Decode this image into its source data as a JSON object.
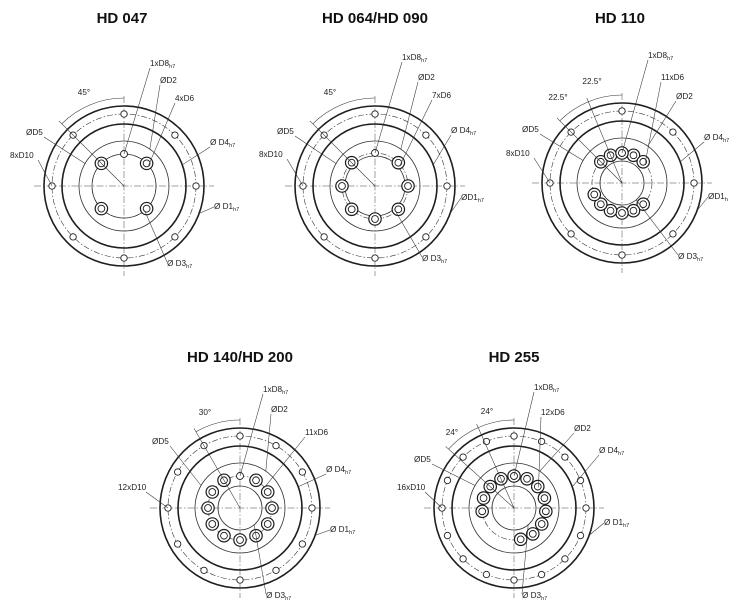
{
  "drawings": [
    {
      "id": "hd-047",
      "title": "HD 047",
      "labels": {
        "pin_hole": "1xD8",
        "pin_hole_tol": "h7",
        "d2": "ØD2",
        "inner_holes": "4xD6",
        "d4": "Ø D4",
        "d4_tol": "h7",
        "d5": "ØD5",
        "outer_holes": "8xD10",
        "d1": "Ø D1",
        "d1_tol": "h7",
        "d3": "Ø D3",
        "d3_tol": "h7"
      },
      "angles": [
        "45°"
      ]
    },
    {
      "id": "hd-064-090",
      "title": "HD 064/HD 090",
      "labels": {
        "pin_hole": "1xD8",
        "pin_hole_tol": "h7",
        "d2": "ØD2",
        "inner_holes": "7xD6",
        "d4": "Ø D4",
        "d4_tol": "h7",
        "d5": "ØD5",
        "outer_holes": "8xD10",
        "d1": "ØD1",
        "d1_tol": "h7",
        "d3": "Ø D3",
        "d3_tol": "h7"
      },
      "angles": [
        "45°"
      ]
    },
    {
      "id": "hd-110",
      "title": "HD 110",
      "labels": {
        "pin_hole": "1xD8",
        "pin_hole_tol": "h7",
        "d2": "ØD2",
        "inner_holes": "11xD6",
        "d4": "Ø D4",
        "d4_tol": "h7",
        "d5": "ØD5",
        "outer_holes": "8xD10",
        "d1": "ØD1",
        "d1_tol": "h",
        "d3": "Ø D3",
        "d3_tol": "h7"
      },
      "angles": [
        "22.5°",
        "22.5°"
      ]
    },
    {
      "id": "hd-140-200",
      "title": "HD 140/HD 200",
      "labels": {
        "pin_hole": "1xD8",
        "pin_hole_tol": "h7",
        "d2": "ØD2",
        "inner_holes": "11xD6",
        "d4": "Ø D4",
        "d4_tol": "h7",
        "d5": "ØD5",
        "outer_holes": "12xD10",
        "d1": "Ø D1",
        "d1_tol": "h7",
        "d3": "Ø D3",
        "d3_tol": "h7"
      },
      "angles": [
        "30°"
      ]
    },
    {
      "id": "hd-255",
      "title": "HD 255",
      "labels": {
        "pin_hole": "1xD8",
        "pin_hole_tol": "h7",
        "d2": "ØD2",
        "inner_holes": "12xD6",
        "d4": "Ø D4",
        "d4_tol": "h7",
        "d5": "ØD5",
        "outer_holes": "16xD10",
        "d1": "Ø D1",
        "d1_tol": "h7",
        "d3": "Ø D3",
        "d3_tol": "h7"
      },
      "angles": [
        "24°",
        "24°"
      ]
    }
  ]
}
